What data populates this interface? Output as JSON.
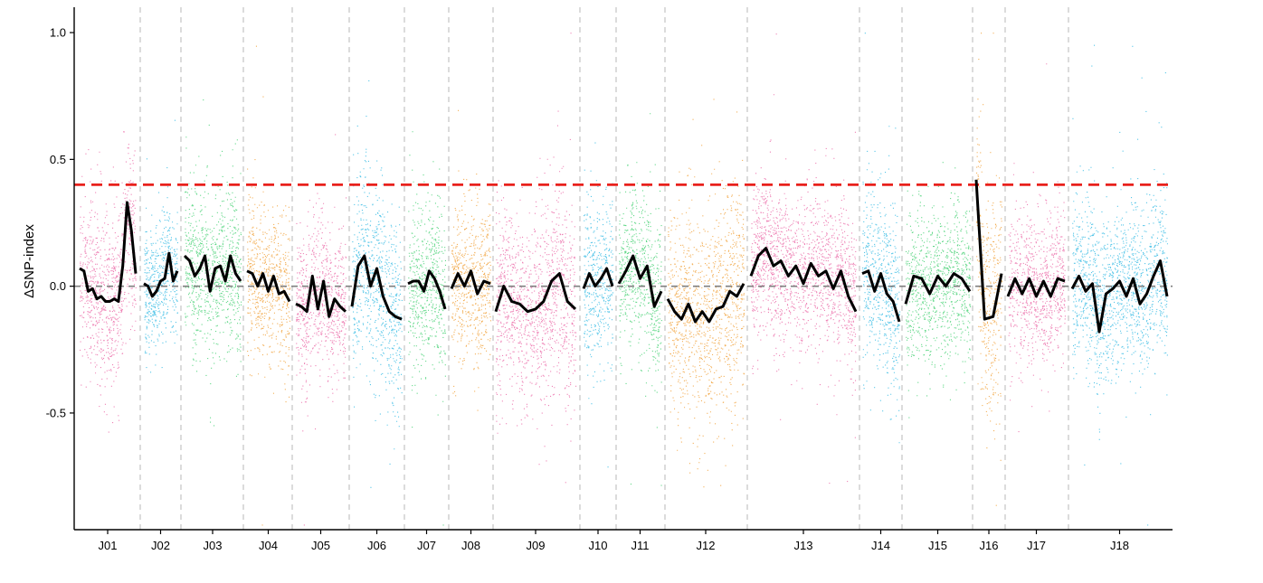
{
  "chart_data": {
    "type": "scatter",
    "title": "",
    "xlabel": "",
    "ylabel": "ΔSNP-index",
    "ylim": [
      -0.96,
      1.1
    ],
    "y_ticks": [
      -0.5,
      0.0,
      0.5,
      1.0
    ],
    "y_tick_labels": [
      "-0.5",
      "0.0",
      "0.5",
      "1.0"
    ],
    "threshold": {
      "value": 0.4,
      "color": "#e8211c",
      "style": "dashed"
    },
    "zero_line": {
      "value": 0.0,
      "color": "#7f7f7f",
      "style": "dashed"
    },
    "grid": false,
    "legend": "none",
    "colors": {
      "pink": "#e8579c",
      "blue": "#1bb1e0",
      "green": "#2dcb62",
      "orange": "#ef9621",
      "smooth_line": "#000000",
      "separator": "#c8c8c8"
    },
    "chromosomes": [
      {
        "name": "J01",
        "color": "pink",
        "spread": 0.22,
        "line": [
          0.07,
          0.06,
          -0.02,
          -0.01,
          -0.05,
          -0.04,
          -0.06,
          -0.06,
          -0.05,
          -0.06,
          0.08,
          0.33,
          0.22,
          0.05
        ]
      },
      {
        "name": "J02",
        "color": "blue",
        "spread": 0.17,
        "line": [
          0.01,
          0.0,
          -0.04,
          -0.02,
          0.02,
          0.03,
          0.13,
          0.02,
          0.06
        ]
      },
      {
        "name": "J03",
        "color": "green",
        "spread": 0.22,
        "line": [
          0.12,
          0.1,
          0.04,
          0.07,
          0.12,
          -0.02,
          0.07,
          0.08,
          0.02,
          0.12,
          0.05,
          0.02
        ]
      },
      {
        "name": "J04",
        "color": "orange",
        "spread": 0.2,
        "line": [
          0.06,
          0.05,
          0.0,
          0.05,
          -0.02,
          0.04,
          -0.03,
          -0.02,
          -0.06
        ]
      },
      {
        "name": "J05",
        "color": "pink",
        "spread": 0.2,
        "line": [
          -0.07,
          -0.08,
          -0.1,
          0.04,
          -0.09,
          0.02,
          -0.12,
          -0.05,
          -0.08,
          -0.1
        ]
      },
      {
        "name": "J06",
        "color": "blue",
        "spread": 0.24,
        "line": [
          -0.08,
          0.08,
          0.12,
          0.0,
          0.07,
          -0.04,
          -0.1,
          -0.12,
          -0.13
        ]
      },
      {
        "name": "J07",
        "color": "green",
        "spread": 0.22,
        "line": [
          0.01,
          0.02,
          0.02,
          -0.02,
          0.06,
          0.03,
          -0.02,
          -0.09
        ]
      },
      {
        "name": "J08",
        "color": "orange",
        "spread": 0.2,
        "line": [
          -0.01,
          0.05,
          0.0,
          0.06,
          -0.03,
          0.02,
          0.01
        ]
      },
      {
        "name": "J09",
        "color": "pink",
        "spread": 0.25,
        "line": [
          -0.1,
          0.0,
          -0.06,
          -0.07,
          -0.1,
          -0.09,
          -0.06,
          0.02,
          0.05,
          -0.06,
          -0.09
        ]
      },
      {
        "name": "J10",
        "color": "blue",
        "spread": 0.22,
        "line": [
          -0.01,
          0.05,
          0.0,
          0.03,
          0.07,
          0.0
        ]
      },
      {
        "name": "J11",
        "color": "green",
        "spread": 0.2,
        "line": [
          0.01,
          0.06,
          0.12,
          0.03,
          0.08,
          -0.08,
          -0.02
        ]
      },
      {
        "name": "J12",
        "color": "orange",
        "spread": 0.27,
        "line": [
          -0.05,
          -0.1,
          -0.13,
          -0.07,
          -0.14,
          -0.1,
          -0.14,
          -0.09,
          -0.08,
          -0.02,
          -0.04,
          0.01
        ]
      },
      {
        "name": "J13",
        "color": "pink",
        "spread": 0.2,
        "line": [
          0.04,
          0.12,
          0.15,
          0.08,
          0.1,
          0.04,
          0.08,
          0.01,
          0.09,
          0.04,
          0.06,
          -0.01,
          0.06,
          -0.04,
          -0.1
        ]
      },
      {
        "name": "J14",
        "color": "blue",
        "spread": 0.25,
        "line": [
          0.05,
          0.06,
          -0.02,
          0.05,
          -0.03,
          -0.06,
          -0.14
        ]
      },
      {
        "name": "J15",
        "color": "green",
        "spread": 0.2,
        "line": [
          -0.07,
          0.04,
          0.03,
          -0.03,
          0.04,
          0.0,
          0.05,
          0.03,
          -0.02
        ]
      },
      {
        "name": "J16",
        "color": "orange",
        "spread": 0.3,
        "line": [
          0.42,
          -0.13,
          -0.12,
          0.05
        ]
      },
      {
        "name": "J17",
        "color": "pink",
        "spread": 0.2,
        "line": [
          -0.04,
          0.03,
          -0.03,
          0.03,
          -0.04,
          0.02,
          -0.04,
          0.03,
          0.02
        ]
      },
      {
        "name": "J18",
        "color": "blue",
        "spread": 0.22,
        "line": [
          -0.01,
          0.04,
          -0.02,
          0.01,
          -0.18,
          -0.03,
          -0.01,
          0.02,
          -0.04,
          0.03,
          -0.07,
          -0.03,
          0.04,
          0.1,
          -0.04
        ]
      }
    ]
  }
}
